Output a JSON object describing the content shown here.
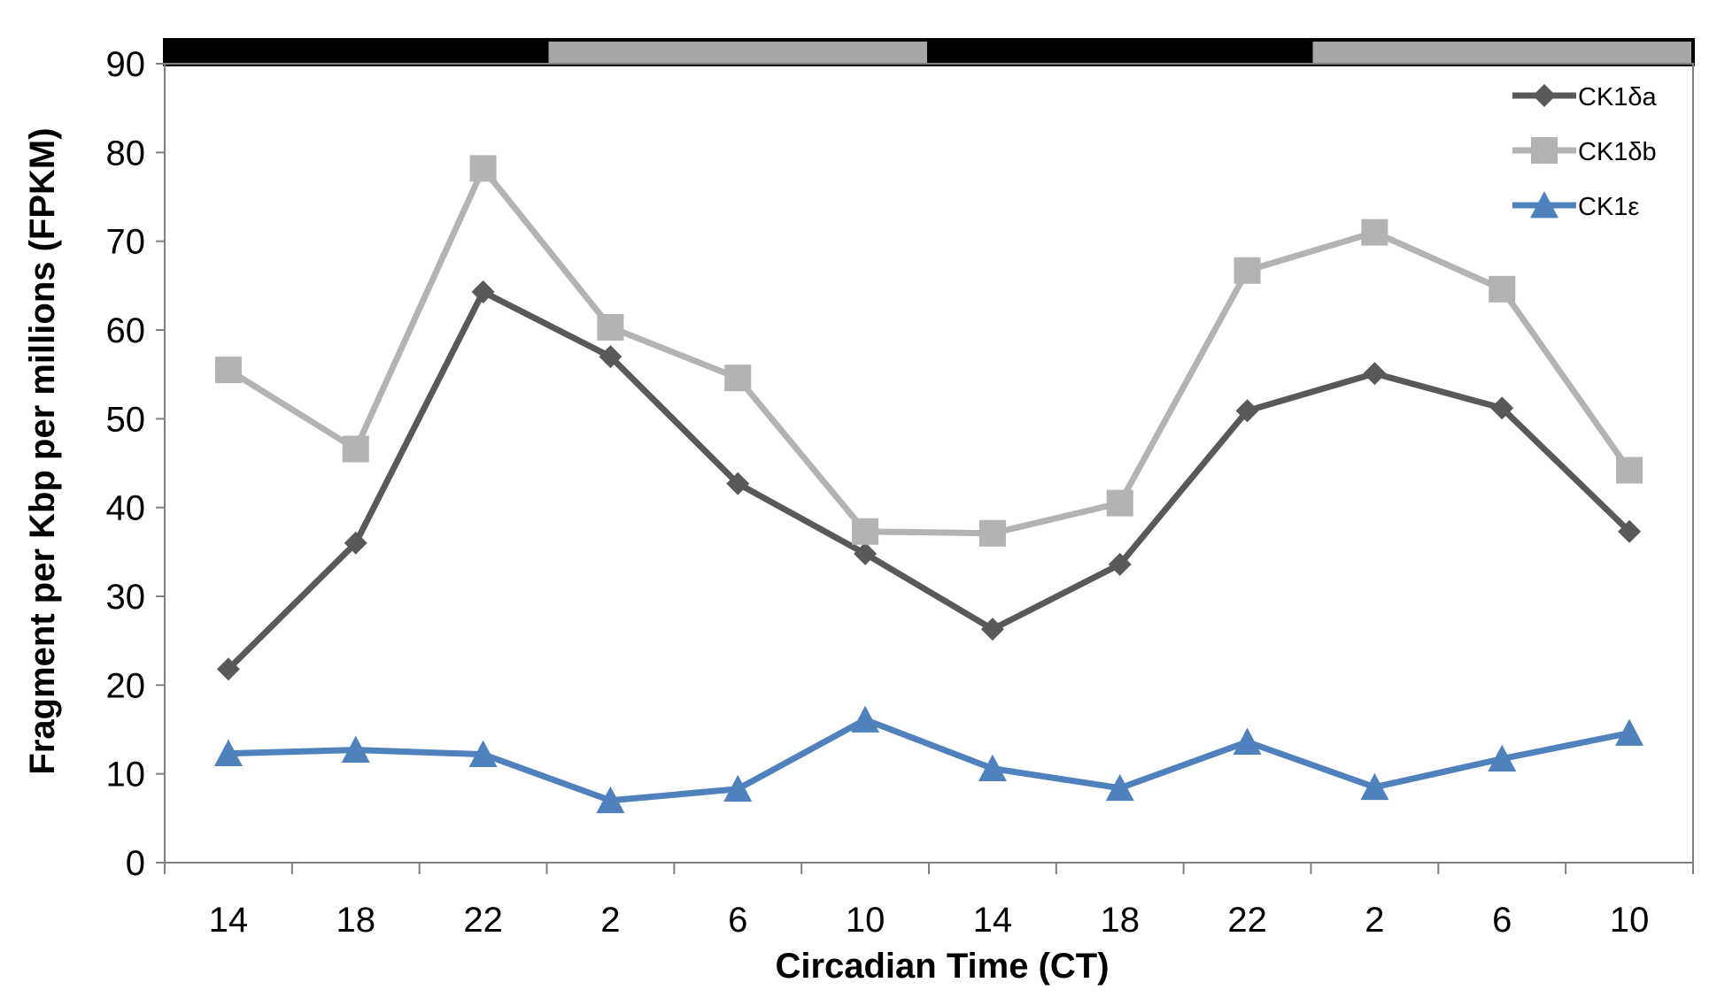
{
  "chart_data": {
    "type": "line",
    "title": "",
    "xlabel": "Circadian Time (CT)",
    "ylabel": "Fragment per Kbp per millions (FPKM)",
    "categories": [
      "14",
      "18",
      "22",
      "2",
      "6",
      "10",
      "14",
      "18",
      "22",
      "2",
      "6",
      "10"
    ],
    "ylim": [
      0,
      90
    ],
    "yticks": [
      0,
      10,
      20,
      30,
      40,
      50,
      60,
      70,
      80,
      90
    ],
    "grid": false,
    "legend_position": "top-right",
    "light_dark_bar": [
      {
        "phase": "dark",
        "color": "#000000"
      },
      {
        "phase": "light",
        "color": "#a6a6a6"
      },
      {
        "phase": "dark",
        "color": "#000000"
      },
      {
        "phase": "light",
        "color": "#a6a6a6"
      }
    ],
    "series": [
      {
        "name": "CK1δa",
        "color": "#595959",
        "marker": "diamond",
        "values": [
          21.8,
          36.0,
          64.3,
          57.0,
          42.7,
          34.8,
          26.3,
          33.6,
          50.9,
          55.1,
          51.2,
          37.3
        ]
      },
      {
        "name": "CK1δb",
        "color": "#b3b3b3",
        "marker": "square",
        "values": [
          55.5,
          46.6,
          78.2,
          60.3,
          54.6,
          37.3,
          37.1,
          40.5,
          66.7,
          71.0,
          64.6,
          44.2
        ]
      },
      {
        "name": "CK1ε",
        "color": "#4f81bd",
        "marker": "triangle",
        "values": [
          12.3,
          12.7,
          12.2,
          7.0,
          8.3,
          16.1,
          10.6,
          8.4,
          13.6,
          8.5,
          11.7,
          14.6
        ]
      }
    ]
  }
}
